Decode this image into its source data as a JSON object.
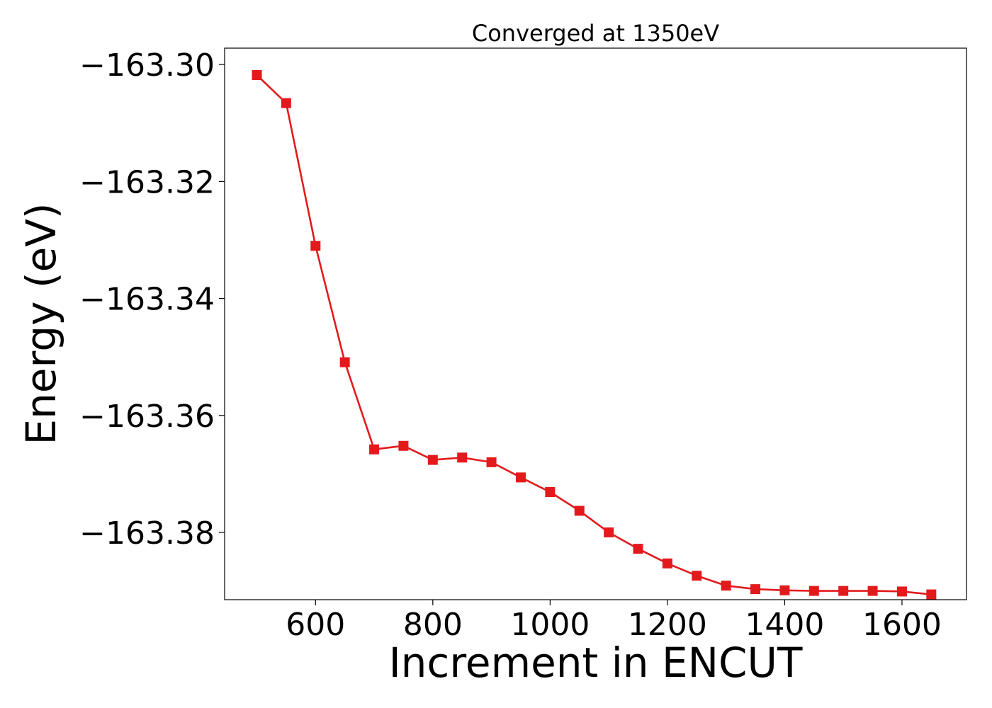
{
  "chart_data": {
    "type": "line",
    "title": "Converged at 1350eV",
    "xlabel": "Increment in ENCUT",
    "ylabel": "Energy (eV)",
    "xlim": [
      445,
      1710
    ],
    "ylim": [
      -163.3915,
      -163.2972
    ],
    "xticks": [
      600,
      800,
      1000,
      1200,
      1400,
      1600
    ],
    "xtick_labels": [
      "600",
      "800",
      "1000",
      "1200",
      "1400",
      "1600"
    ],
    "yticks": [
      -163.3,
      -163.32,
      -163.34,
      -163.36,
      -163.38
    ],
    "ytick_labels": [
      "−163.30",
      "−163.32",
      "−163.34",
      "−163.36",
      "−163.38"
    ],
    "grid": false,
    "legend": "none",
    "series": [
      {
        "color": "#e31a1c",
        "marker": "square",
        "x": [
          500,
          550,
          600,
          650,
          700,
          750,
          800,
          850,
          900,
          950,
          1000,
          1050,
          1100,
          1150,
          1200,
          1250,
          1300,
          1350,
          1400,
          1450,
          1500,
          1550,
          1600,
          1650
        ],
        "y": [
          -163.3018,
          -163.3066,
          -163.331,
          -163.3509,
          -163.3658,
          -163.3652,
          -163.3676,
          -163.3672,
          -163.368,
          -163.3706,
          -163.3731,
          -163.3763,
          -163.38,
          -163.3828,
          -163.3853,
          -163.3874,
          -163.3891,
          -163.3897,
          -163.3899,
          -163.39,
          -163.39,
          -163.39,
          -163.3901,
          -163.3906
        ]
      }
    ]
  }
}
